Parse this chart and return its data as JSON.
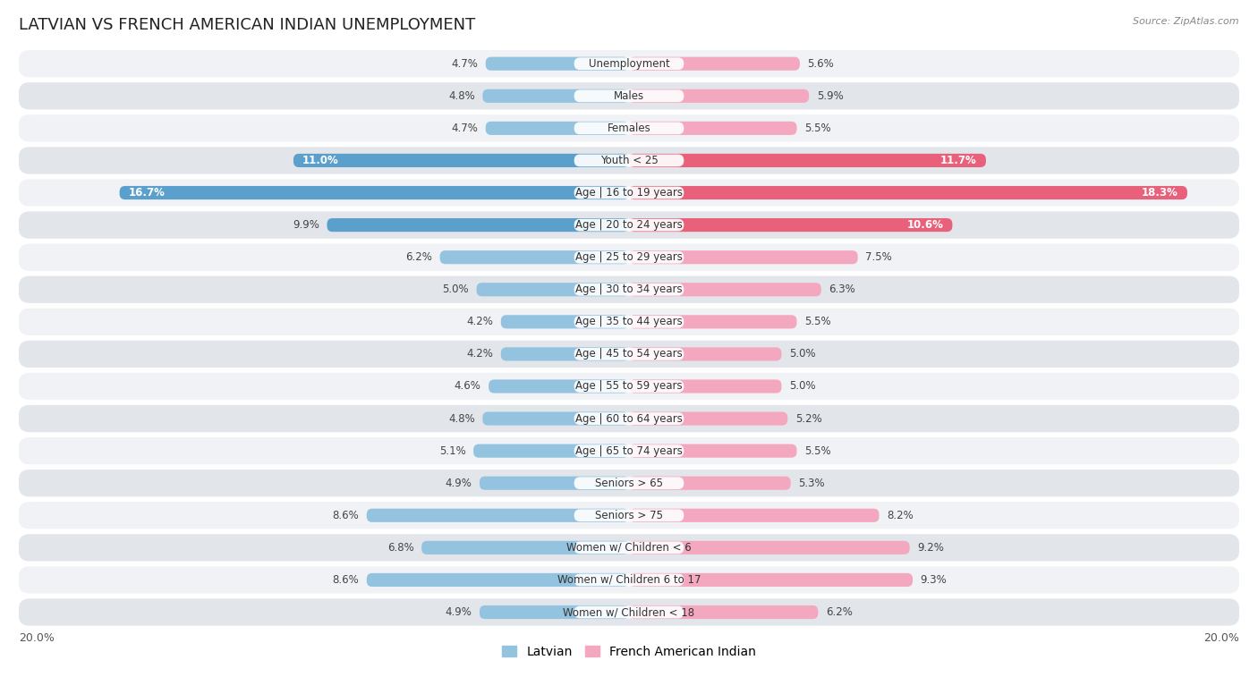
{
  "title": "LATVIAN VS FRENCH AMERICAN INDIAN UNEMPLOYMENT",
  "source": "Source: ZipAtlas.com",
  "categories": [
    "Unemployment",
    "Males",
    "Females",
    "Youth < 25",
    "Age | 16 to 19 years",
    "Age | 20 to 24 years",
    "Age | 25 to 29 years",
    "Age | 30 to 34 years",
    "Age | 35 to 44 years",
    "Age | 45 to 54 years",
    "Age | 55 to 59 years",
    "Age | 60 to 64 years",
    "Age | 65 to 74 years",
    "Seniors > 65",
    "Seniors > 75",
    "Women w/ Children < 6",
    "Women w/ Children 6 to 17",
    "Women w/ Children < 18"
  ],
  "latvian": [
    4.7,
    4.8,
    4.7,
    11.0,
    16.7,
    9.9,
    6.2,
    5.0,
    4.2,
    4.2,
    4.6,
    4.8,
    5.1,
    4.9,
    8.6,
    6.8,
    8.6,
    4.9
  ],
  "french_american_indian": [
    5.6,
    5.9,
    5.5,
    11.7,
    18.3,
    10.6,
    7.5,
    6.3,
    5.5,
    5.0,
    5.0,
    5.2,
    5.5,
    5.3,
    8.2,
    9.2,
    9.3,
    6.2
  ],
  "latvian_color": "#94c3e0",
  "french_color": "#f4a8c0",
  "highlight_latvian_color": "#5b9fcc",
  "highlight_french_color": "#e8607a",
  "row_bg_even": "#f0f2f5",
  "row_bg_odd": "#e2e5ea",
  "max_val": 20.0,
  "legend_latvian": "Latvian",
  "legend_french": "French American Indian",
  "title_fontsize": 13,
  "label_fontsize": 8.5,
  "value_fontsize": 8.5
}
